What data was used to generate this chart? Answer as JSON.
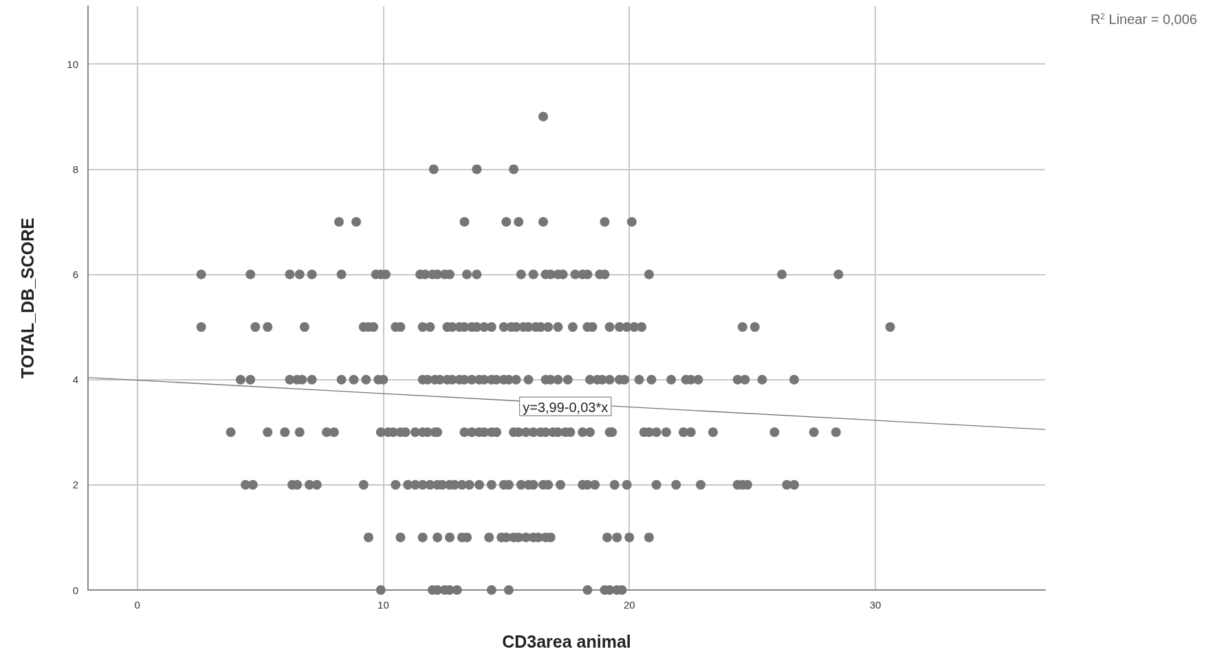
{
  "chart_data": {
    "type": "scatter",
    "xlabel": "CD3area animal",
    "ylabel": "TOTAL_DB_SCORE",
    "xlim": [
      -2,
      36.9
    ],
    "ylim": [
      0,
      11.1
    ],
    "xticks": [
      0,
      10,
      20,
      30
    ],
    "yticks": [
      0,
      2,
      4,
      6,
      8,
      10
    ],
    "grid": true,
    "marker": "circle",
    "annotations": [
      "R$^{2}$ Linear = 0,006",
      {
        "text": "y=3,99-0,03*x",
        "x": 17.4,
        "y": 3.49
      }
    ],
    "series": [
      {
        "color": "#767676",
        "x": [
          16.5,
          12.05,
          13.8,
          15.3,
          8.2,
          8.9,
          13.3,
          15.0,
          15.5,
          16.5,
          19.0,
          20.1,
          2.6,
          4.6,
          6.2,
          6.6,
          7.1,
          8.3,
          9.7,
          9.9,
          10.1,
          11.5,
          11.7,
          12.0,
          12.2,
          12.5,
          12.7,
          13.4,
          13.8,
          15.6,
          16.1,
          16.6,
          16.8,
          17.1,
          17.3,
          17.8,
          18.1,
          18.3,
          18.8,
          19.0,
          20.8,
          26.2,
          28.5,
          2.6,
          4.8,
          5.3,
          6.8,
          9.2,
          9.4,
          9.6,
          10.5,
          10.7,
          11.6,
          11.9,
          12.6,
          12.8,
          13.1,
          13.3,
          13.6,
          13.8,
          14.1,
          14.4,
          14.9,
          15.2,
          15.4,
          15.7,
          15.9,
          16.2,
          16.4,
          16.7,
          17.1,
          17.7,
          18.3,
          18.5,
          19.2,
          19.6,
          19.9,
          20.2,
          20.5,
          24.6,
          25.1,
          30.6,
          4.2,
          4.6,
          6.2,
          6.5,
          6.7,
          7.1,
          8.3,
          8.8,
          9.3,
          9.8,
          10.0,
          11.6,
          11.8,
          12.1,
          12.3,
          12.6,
          12.8,
          13.1,
          13.3,
          13.6,
          13.9,
          14.1,
          14.4,
          14.6,
          14.9,
          15.1,
          15.4,
          15.9,
          16.6,
          16.8,
          17.1,
          17.5,
          18.4,
          18.7,
          18.9,
          19.2,
          19.6,
          19.8,
          20.4,
          20.9,
          21.7,
          22.3,
          22.5,
          22.8,
          24.4,
          24.7,
          25.4,
          26.7,
          3.8,
          5.3,
          6.0,
          6.6,
          7.7,
          8.0,
          9.9,
          10.2,
          10.4,
          10.7,
          10.9,
          11.3,
          11.6,
          11.8,
          12.1,
          12.2,
          13.3,
          13.6,
          13.9,
          14.1,
          14.4,
          14.6,
          15.3,
          15.5,
          15.8,
          16.1,
          16.4,
          16.6,
          16.9,
          17.1,
          17.4,
          17.6,
          18.1,
          18.4,
          19.2,
          19.3,
          20.6,
          20.8,
          21.1,
          21.5,
          22.2,
          22.5,
          23.4,
          25.9,
          27.5,
          28.4,
          4.4,
          4.7,
          6.3,
          6.5,
          7.0,
          7.3,
          9.2,
          10.5,
          11.0,
          11.3,
          11.6,
          11.9,
          12.2,
          12.4,
          12.7,
          12.9,
          13.2,
          13.5,
          13.9,
          14.4,
          14.9,
          15.1,
          15.6,
          15.9,
          16.1,
          16.5,
          16.7,
          17.2,
          18.1,
          18.3,
          18.6,
          19.4,
          19.9,
          21.1,
          21.9,
          22.9,
          24.4,
          24.6,
          24.8,
          26.4,
          26.7,
          9.4,
          10.7,
          11.6,
          12.2,
          12.7,
          13.2,
          13.4,
          14.3,
          14.8,
          15.0,
          15.3,
          15.5,
          15.8,
          16.1,
          16.3,
          16.6,
          16.8,
          19.1,
          19.5,
          20.0,
          20.8,
          9.9,
          12.0,
          12.2,
          12.5,
          12.7,
          13.0,
          14.4,
          15.1,
          18.3,
          19.0,
          19.2,
          19.5,
          19.7
        ],
        "values": [
          9,
          8,
          8,
          8,
          7,
          7,
          7,
          7,
          7,
          7,
          7,
          7,
          6,
          6,
          6,
          6,
          6,
          6,
          6,
          6,
          6,
          6,
          6,
          6,
          6,
          6,
          6,
          6,
          6,
          6,
          6,
          6,
          6,
          6,
          6,
          6,
          6,
          6,
          6,
          6,
          6,
          6,
          6,
          5,
          5,
          5,
          5,
          5,
          5,
          5,
          5,
          5,
          5,
          5,
          5,
          5,
          5,
          5,
          5,
          5,
          5,
          5,
          5,
          5,
          5,
          5,
          5,
          5,
          5,
          5,
          5,
          5,
          5,
          5,
          5,
          5,
          5,
          5,
          5,
          5,
          5,
          5,
          4,
          4,
          4,
          4,
          4,
          4,
          4,
          4,
          4,
          4,
          4,
          4,
          4,
          4,
          4,
          4,
          4,
          4,
          4,
          4,
          4,
          4,
          4,
          4,
          4,
          4,
          4,
          4,
          4,
          4,
          4,
          4,
          4,
          4,
          4,
          4,
          4,
          4,
          4,
          4,
          4,
          4,
          4,
          4,
          4,
          4,
          4,
          4,
          3,
          3,
          3,
          3,
          3,
          3,
          3,
          3,
          3,
          3,
          3,
          3,
          3,
          3,
          3,
          3,
          3,
          3,
          3,
          3,
          3,
          3,
          3,
          3,
          3,
          3,
          3,
          3,
          3,
          3,
          3,
          3,
          3,
          3,
          3,
          3,
          3,
          3,
          3,
          3,
          3,
          3,
          3,
          3,
          3,
          3,
          2,
          2,
          2,
          2,
          2,
          2,
          2,
          2,
          2,
          2,
          2,
          2,
          2,
          2,
          2,
          2,
          2,
          2,
          2,
          2,
          2,
          2,
          2,
          2,
          2,
          2,
          2,
          2,
          2,
          2,
          2,
          2,
          2,
          2,
          2,
          2,
          2,
          2,
          2,
          2,
          2,
          1,
          1,
          1,
          1,
          1,
          1,
          1,
          1,
          1,
          1,
          1,
          1,
          1,
          1,
          1,
          1,
          1,
          1,
          1,
          1,
          1,
          0,
          0,
          0,
          0,
          0,
          0,
          0,
          0,
          0,
          0,
          0,
          0,
          0
        ]
      },
      {
        "type": "line",
        "color": "#767676",
        "x": [
          -2,
          36.9
        ],
        "values": [
          4.04,
          3.05
        ],
        "marker": "none"
      }
    ]
  }
}
